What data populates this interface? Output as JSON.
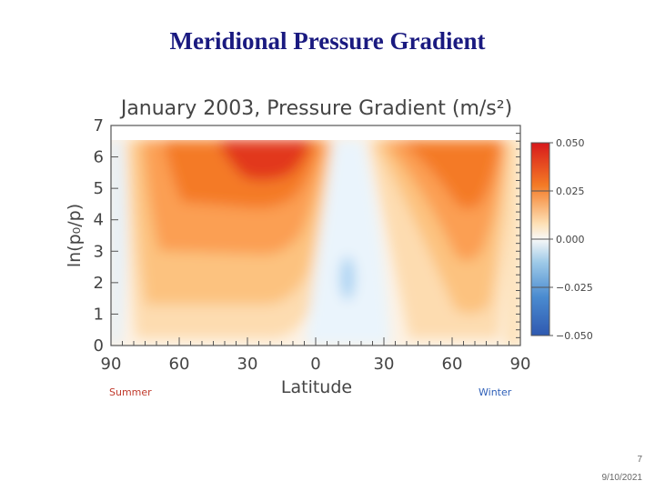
{
  "slide": {
    "title": "Meridional Pressure Gradient",
    "page_number": "7",
    "date": "9/10/2021"
  },
  "chart_data": {
    "type": "heatmap",
    "title": "January 2003, Pressure Gradient (m/s²)",
    "xlabel": "Latitude",
    "ylabel": "ln(p₀/p)",
    "x_ticks": [
      "90",
      "60",
      "30",
      "0",
      "30",
      "60",
      "90"
    ],
    "x_tick_values": [
      -90,
      -60,
      -30,
      0,
      30,
      60,
      90
    ],
    "y_ticks": [
      "0",
      "1",
      "2",
      "3",
      "4",
      "5",
      "6",
      "7"
    ],
    "xlim": [
      -90,
      90
    ],
    "ylim": [
      0,
      7
    ],
    "hemisphere_labels": {
      "left": {
        "text": "Summer",
        "color": "#c0392b"
      },
      "right": {
        "text": "Winter",
        "color": "#2e5fb8"
      }
    },
    "colorbar": {
      "ticks": [
        "0.050",
        "0.025",
        "0.000",
        "−0.025",
        "−0.050"
      ],
      "tick_values": [
        0.05,
        0.025,
        0.0,
        -0.025,
        -0.05
      ],
      "range": [
        -0.05,
        0.05
      ],
      "colors_high_to_low": [
        "#d7191c",
        "#f47a25",
        "#fdae61",
        "#fee4bf",
        "#f8f8f8",
        "#cfe6f7",
        "#6baed6",
        "#2f6ab3"
      ]
    },
    "features": [
      {
        "name": "summer-maximum",
        "lat": -18,
        "ln_p": 6.3,
        "value": 0.05
      },
      {
        "name": "winter-maximum",
        "lat": 60,
        "ln_p": 5.5,
        "value": 0.035
      },
      {
        "name": "equatorial-minimum",
        "lat": 12,
        "ln_p": 2.0,
        "value": -0.02
      }
    ],
    "grid": false
  }
}
